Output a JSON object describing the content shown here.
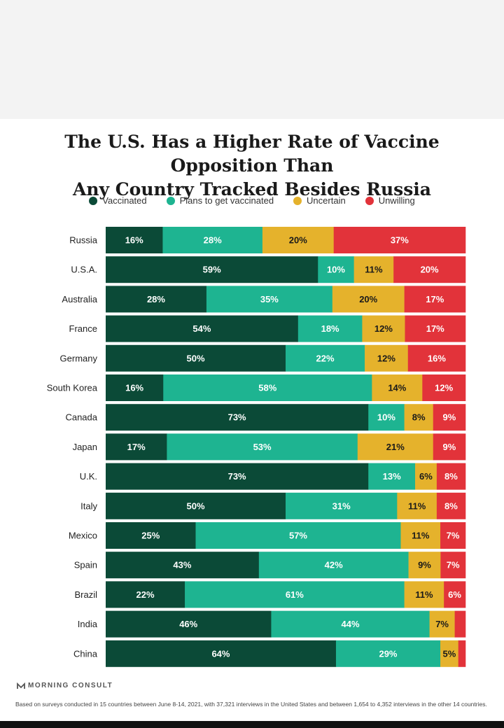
{
  "chart_data": {
    "type": "bar",
    "orientation": "horizontal",
    "stacked": true,
    "normalized": true,
    "title": [
      "The U.S. Has a Higher Rate of Vaccine Opposition Than",
      "Any Country Tracked Besides Russia"
    ],
    "legend_position": "top",
    "grid": false,
    "categories": [
      "Russia",
      "U.S.A.",
      "Australia",
      "France",
      "Germany",
      "South Korea",
      "Canada",
      "Japan",
      "U.K.",
      "Italy",
      "Mexico",
      "Spain",
      "Brazil",
      "India",
      "China"
    ],
    "series": [
      {
        "name": "Vaccinated",
        "color": "#0b4a37",
        "values": [
          16,
          59,
          28,
          54,
          50,
          16,
          73,
          17,
          73,
          50,
          25,
          43,
          22,
          46,
          64
        ]
      },
      {
        "name": "Plans to get vaccinated",
        "color": "#1eb491",
        "values": [
          28,
          10,
          35,
          18,
          22,
          58,
          10,
          53,
          13,
          31,
          57,
          42,
          61,
          44,
          29
        ]
      },
      {
        "name": "Uncertain",
        "color": "#e5b22c",
        "values": [
          20,
          11,
          20,
          12,
          12,
          14,
          8,
          21,
          6,
          11,
          11,
          9,
          11,
          7,
          5
        ]
      },
      {
        "name": "Unwilling",
        "color": "#e2333a",
        "values": [
          37,
          20,
          17,
          17,
          16,
          12,
          9,
          9,
          8,
          8,
          7,
          7,
          6,
          3,
          2
        ]
      }
    ],
    "data_labels": [
      [
        "16%",
        "28%",
        "20%",
        "37%"
      ],
      [
        "59%",
        "10%",
        "11%",
        "20%"
      ],
      [
        "28%",
        "35%",
        "20%",
        "17%"
      ],
      [
        "54%",
        "18%",
        "12%",
        "17%"
      ],
      [
        "50%",
        "22%",
        "12%",
        "16%"
      ],
      [
        "16%",
        "58%",
        "14%",
        "12%"
      ],
      [
        "73%",
        "10%",
        "8%",
        "9%"
      ],
      [
        "17%",
        "53%",
        "21%",
        "9%"
      ],
      [
        "73%",
        "13%",
        "6%",
        "8%"
      ],
      [
        "50%",
        "31%",
        "11%",
        "8%"
      ],
      [
        "25%",
        "57%",
        "11%",
        "7%"
      ],
      [
        "43%",
        "42%",
        "9%",
        "7%"
      ],
      [
        "22%",
        "61%",
        "11%",
        "6%"
      ],
      [
        "46%",
        "44%",
        "7%",
        ""
      ],
      [
        "64%",
        "29%",
        "5%",
        ""
      ]
    ]
  },
  "brand": "MORNING CONSULT",
  "footnote": "Based on surveys conducted in 15 countries between June 8-14, 2021, with 37,321 interviews in the United States and between 1,654 to 4,352 interviews in the other 14 countries."
}
